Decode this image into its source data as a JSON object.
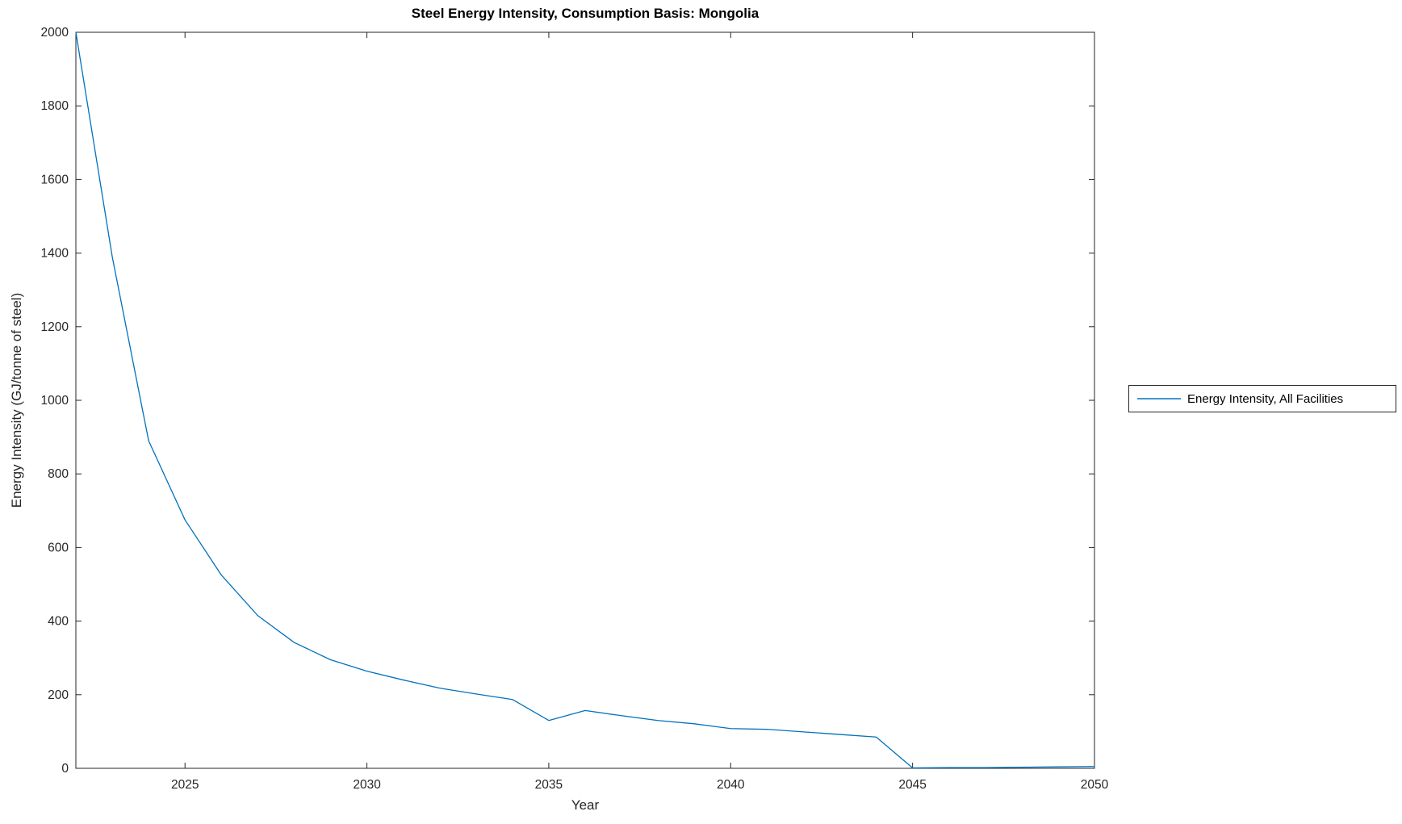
{
  "figure": {
    "background_color": "#ffffff"
  },
  "chart_data": {
    "type": "line",
    "title": "Steel Energy Intensity, Consumption Basis: Mongolia",
    "xlabel": "Year",
    "ylabel": "Energy Intensity (GJ/tonne of steel)",
    "x": [
      2022,
      2023,
      2024,
      2025,
      2026,
      2027,
      2028,
      2029,
      2030,
      2031,
      2032,
      2033,
      2034,
      2035,
      2036,
      2037,
      2038,
      2039,
      2040,
      2041,
      2042,
      2043,
      2044,
      2045,
      2046,
      2047,
      2048,
      2049,
      2050
    ],
    "series": [
      {
        "name": "Energy Intensity, All Facilities",
        "color": "#0072BD",
        "values": [
          2000,
          1390,
          890,
          675,
          525,
          415,
          342,
          295,
          264,
          240,
          218,
          202,
          187,
          130,
          157,
          143,
          130,
          121,
          108,
          106,
          99,
          92,
          85,
          1,
          2,
          2,
          3,
          4,
          5
        ]
      }
    ],
    "xlim": [
      2022,
      2050
    ],
    "ylim": [
      0,
      2000
    ],
    "xticks": [
      2025,
      2030,
      2035,
      2040,
      2045,
      2050
    ],
    "yticks": [
      0,
      200,
      400,
      600,
      800,
      1000,
      1200,
      1400,
      1600,
      1800,
      2000
    ],
    "grid": false,
    "axis_color": "#262626",
    "frame": "box",
    "tick_direction": "in",
    "legend_position": "outside-right"
  }
}
